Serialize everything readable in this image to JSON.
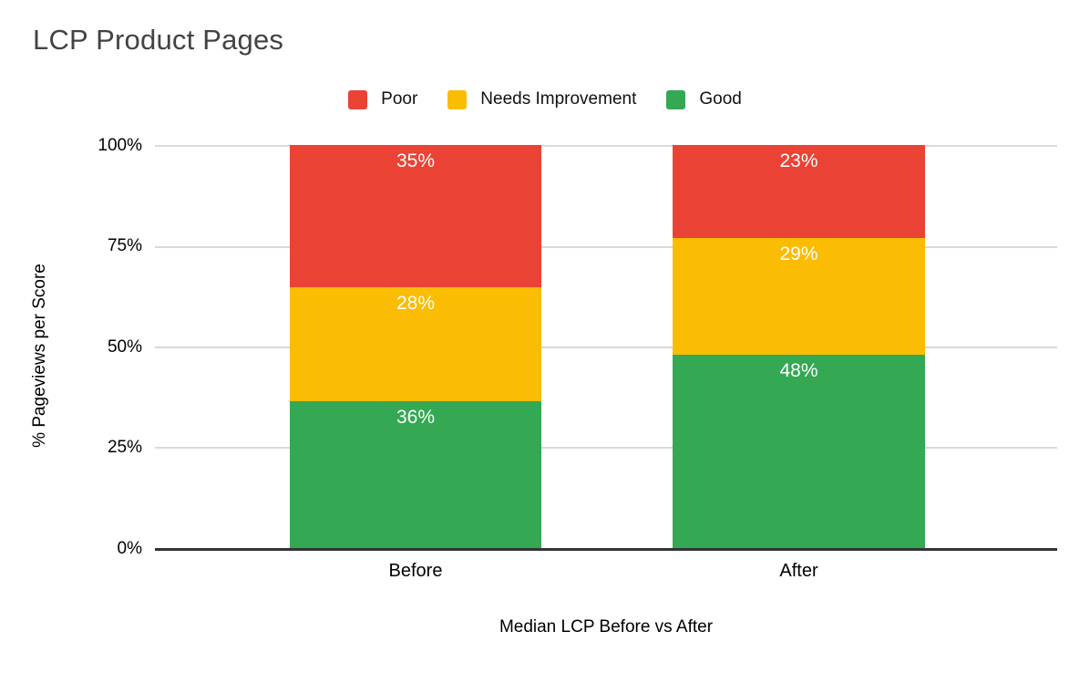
{
  "title": "LCP Product Pages",
  "title_color": "#434343",
  "chart_data": {
    "type": "bar",
    "variant": "stacked-100",
    "title": "LCP Product Pages",
    "xlabel": "Median LCP Before vs After",
    "ylabel": "% Pageviews per Score",
    "categories": [
      "Before",
      "After"
    ],
    "series": [
      {
        "name": "Poor",
        "color": "#EA4335",
        "values": [
          35,
          23
        ]
      },
      {
        "name": "Needs Improvement",
        "color": "#FBBC04",
        "values": [
          28,
          29
        ]
      },
      {
        "name": "Good",
        "color": "#34A853",
        "values": [
          36,
          48
        ]
      }
    ],
    "value_label_format": "{v}%",
    "value_label_color": "#ffffff",
    "yticks": [
      "100%",
      "75%",
      "50%",
      "25%",
      "0%"
    ],
    "ylim": [
      0,
      100
    ],
    "grid": true,
    "gridline_color": "#d9d9d9",
    "baseline_color": "#333333",
    "legend_position": "top"
  }
}
